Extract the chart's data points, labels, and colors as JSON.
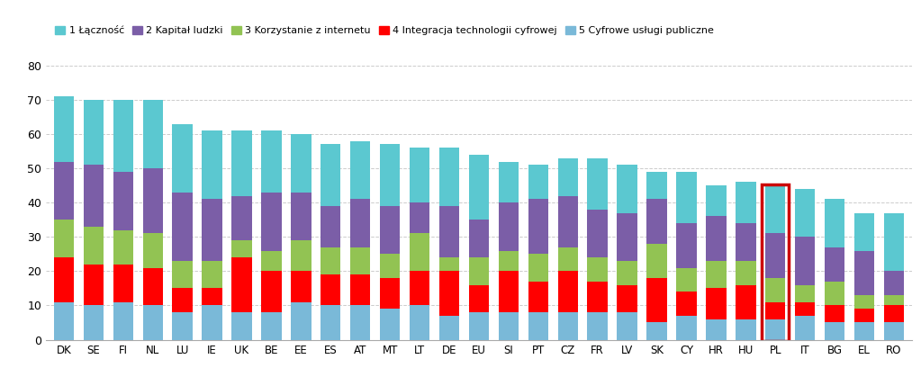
{
  "countries": [
    "DK",
    "SE",
    "FI",
    "NL",
    "LU",
    "IE",
    "UK",
    "BE",
    "EE",
    "ES",
    "AT",
    "MT",
    "LT",
    "DE",
    "EU",
    "SI",
    "PT",
    "CZ",
    "FR",
    "LV",
    "SK",
    "CY",
    "HR",
    "HU",
    "PL",
    "IT",
    "BG",
    "EL",
    "RO"
  ],
  "series": {
    "5 Cyfrowe usługi publiczne": [
      11,
      10,
      11,
      10,
      8,
      10,
      8,
      8,
      11,
      10,
      10,
      9,
      10,
      7,
      8,
      8,
      8,
      8,
      8,
      8,
      5,
      7,
      6,
      6,
      6,
      7,
      5,
      5,
      5
    ],
    "4 Integracja technologii cyfrowej": [
      13,
      12,
      11,
      11,
      7,
      5,
      16,
      12,
      9,
      9,
      9,
      9,
      10,
      13,
      8,
      12,
      9,
      12,
      9,
      8,
      13,
      7,
      9,
      10,
      5,
      4,
      5,
      4,
      5
    ],
    "3 Korzystanie z internetu": [
      11,
      11,
      10,
      10,
      8,
      8,
      5,
      6,
      9,
      8,
      8,
      7,
      11,
      4,
      8,
      6,
      8,
      7,
      7,
      7,
      10,
      7,
      8,
      7,
      7,
      5,
      7,
      4,
      3
    ],
    "2 Kapitał ludzki": [
      17,
      18,
      17,
      19,
      20,
      18,
      13,
      17,
      14,
      12,
      14,
      14,
      9,
      15,
      11,
      14,
      16,
      15,
      14,
      14,
      13,
      13,
      13,
      11,
      13,
      14,
      10,
      13,
      7
    ],
    "1 Łączność": [
      19,
      19,
      21,
      20,
      20,
      20,
      19,
      18,
      17,
      18,
      17,
      18,
      16,
      17,
      19,
      12,
      10,
      11,
      15,
      14,
      8,
      15,
      9,
      12,
      14,
      14,
      14,
      11,
      17
    ]
  },
  "colors": {
    "5 Cyfrowe usługi publiczne": "#7ab9d8",
    "4 Integracja technologii cyfrowej": "#ff0000",
    "3 Korzystanie z internetu": "#92c353",
    "2 Kapitał ludzki": "#7b5ea7",
    "1 Łączność": "#5bc8d0"
  },
  "legend_order": [
    "1 Łączność",
    "2 Kapitał ludzki",
    "3 Korzystanie z internetu",
    "4 Integracja technologii cyfrowej",
    "5 Cyfrowe usługi publiczne"
  ],
  "ylim": [
    0,
    80
  ],
  "yticks": [
    0,
    10,
    20,
    30,
    40,
    50,
    60,
    70,
    80
  ],
  "highlighted_country": "PL",
  "highlight_color": "#cc0000",
  "background_color": "#ffffff",
  "grid_color": "#cccccc"
}
